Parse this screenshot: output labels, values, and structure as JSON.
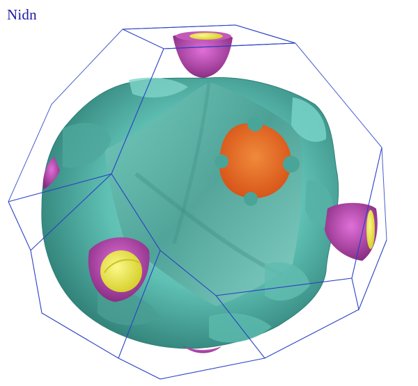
{
  "title": "Nidn",
  "colors": {
    "background": "#ffffff",
    "title_text": "#1a1aa6",
    "brillouin_zone_edges": "#2a3fc4",
    "main_surface": "#5fc0b4",
    "main_surface_shadow": "#2f7f76",
    "pocket_orange": "#e86a22",
    "pocket_magenta": "#b24aa6",
    "pocket_yellow": "#f2ef4a"
  }
}
